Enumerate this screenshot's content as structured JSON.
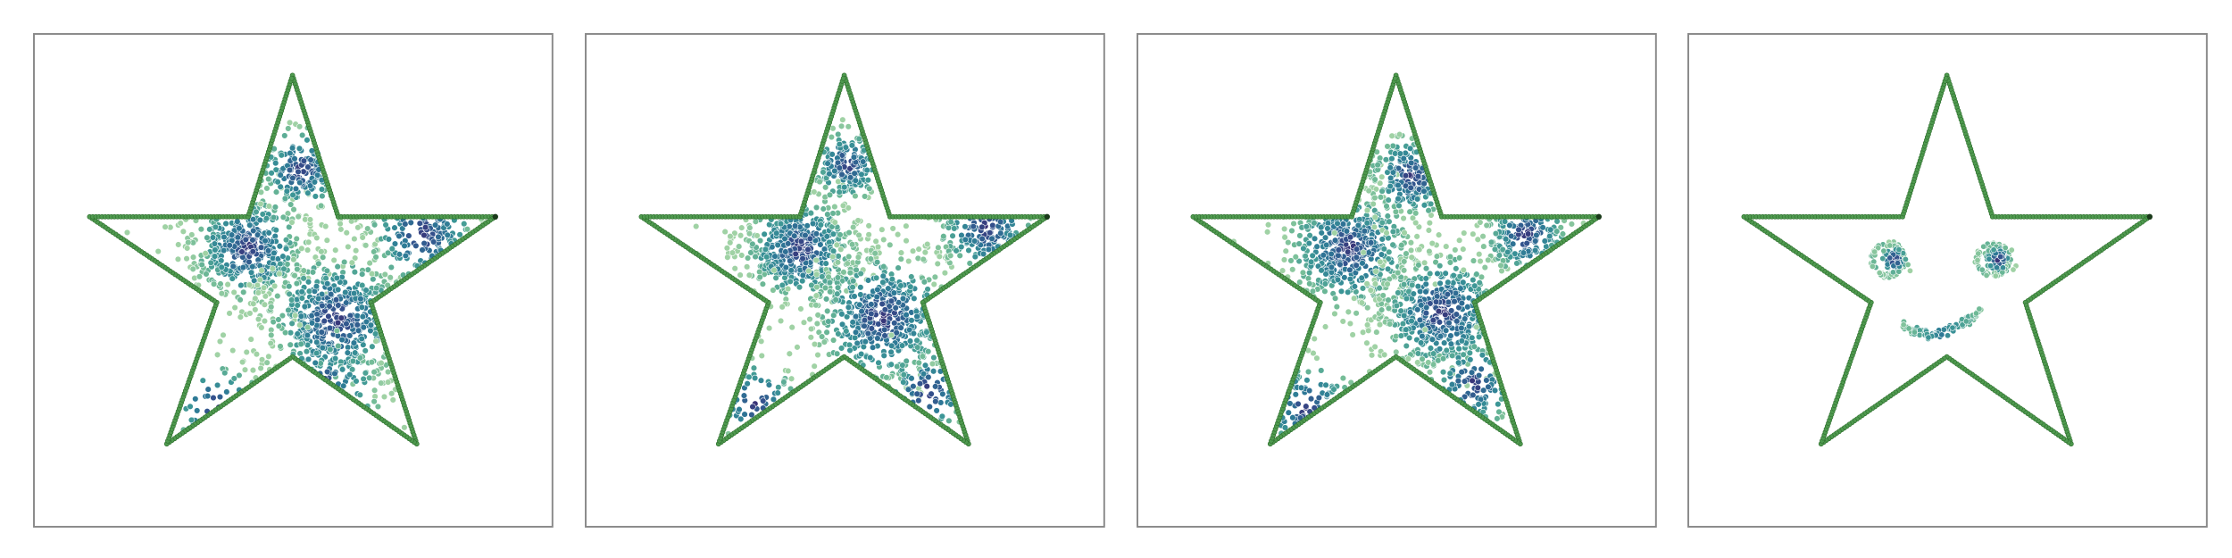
{
  "chart_data": [
    {
      "type": "scatter"
    },
    {
      "type": "scatter"
    },
    {
      "type": "scatter"
    },
    {
      "type": "scatter"
    }
  ]
}
